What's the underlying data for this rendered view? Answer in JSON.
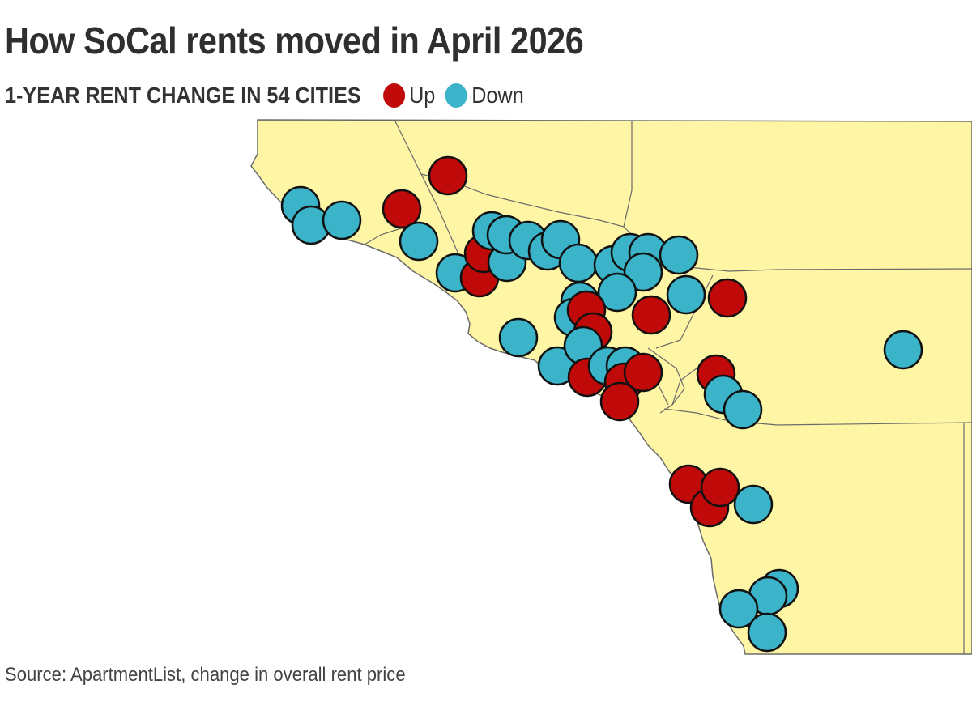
{
  "title": "How SoCal rents moved in April 2026",
  "subtitle": "1-YEAR RENT CHANGE IN 54 CITIES",
  "legend": [
    {
      "label": "Up",
      "color": "#c00a0a"
    },
    {
      "label": "Down",
      "color": "#3bb3c9"
    }
  ],
  "source": "Source: ApartmentList, change in overall rent price",
  "map_colors": {
    "land": "#fef6a4",
    "ocean": "#ffffff",
    "border": "#6b6b6b",
    "up": "#c00a0a",
    "down": "#3bb3c9"
  }
}
